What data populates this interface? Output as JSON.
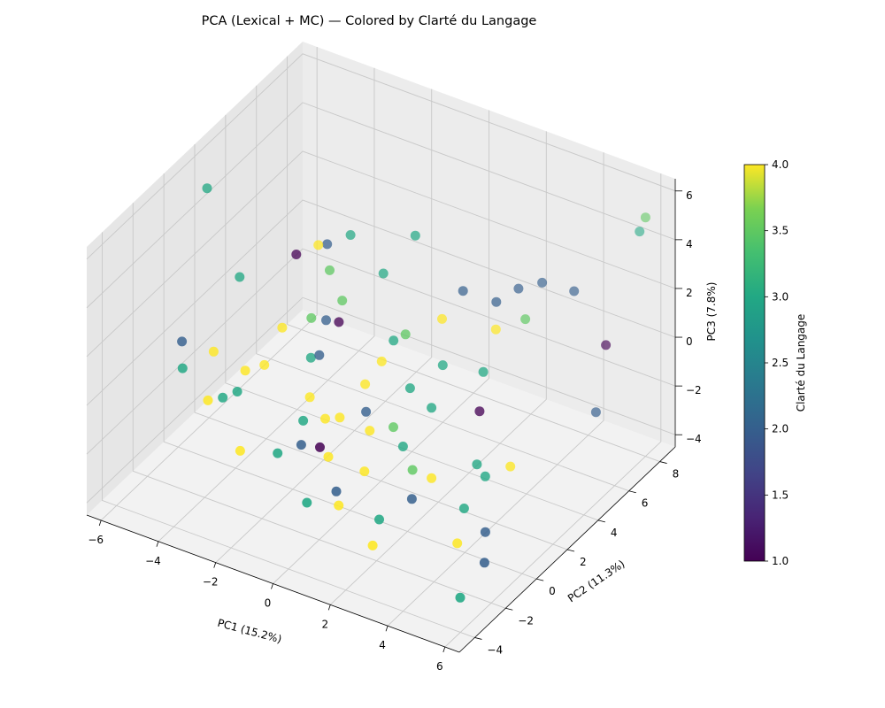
{
  "chart_data": {
    "type": "scatter",
    "subtype": "3d",
    "title": "PCA (Lexical + MC) — Colored by Clarté du Langage",
    "xlabel": "PC1 (15.2%)",
    "ylabel": "PC2 (11.3%)",
    "zlabel": "PC3 (7.8%)",
    "xlim": [
      -6.5,
      6.5
    ],
    "ylim": [
      -5,
      9
    ],
    "zlim": [
      -4.5,
      6.5
    ],
    "x_ticks": [
      "−6",
      "−4",
      "−2",
      "0",
      "2",
      "4",
      "6"
    ],
    "y_ticks": [
      "−4",
      "−2",
      "0",
      "2",
      "4",
      "6",
      "8"
    ],
    "z_ticks": [
      "−4",
      "−2",
      "0",
      "2",
      "4",
      "6"
    ],
    "grid": true,
    "colormap": "viridis",
    "colorbar": {
      "label": "Clarté du Langage",
      "min": 1.0,
      "max": 4.0,
      "ticks": [
        "1.0",
        "1.5",
        "2.0",
        "2.5",
        "3.0",
        "3.5",
        "4.0"
      ]
    },
    "points": [
      {
        "x": -5.8,
        "y": 1.5,
        "z": 5.3,
        "c": 3.0
      },
      {
        "x": -4.5,
        "y": 1.2,
        "z": 2.4,
        "c": 3.0
      },
      {
        "x": -5.6,
        "y": -0.5,
        "z": 0.3,
        "c": 2.0
      },
      {
        "x": -5.2,
        "y": -1.2,
        "z": -0.2,
        "c": 3.0
      },
      {
        "x": -4.6,
        "y": -0.3,
        "z": 0.2,
        "c": 4.0
      },
      {
        "x": -4.1,
        "y": -1.6,
        "z": -0.8,
        "c": 4.0
      },
      {
        "x": -3.8,
        "y": -1.2,
        "z": -0.8,
        "c": 3.0
      },
      {
        "x": -3.4,
        "y": -1.0,
        "z": -0.5,
        "c": 3.0
      },
      {
        "x": -3.5,
        "y": -0.3,
        "z": -0.1,
        "c": 4.0
      },
      {
        "x": -3.1,
        "y": 0.2,
        "z": 0.0,
        "c": 4.0
      },
      {
        "x": -2.8,
        "y": 0.8,
        "z": 1.3,
        "c": 4.0
      },
      {
        "x": -2.9,
        "y": 1.9,
        "z": 3.6,
        "c": 1.0
      },
      {
        "x": -2.4,
        "y": 2.4,
        "z": 3.9,
        "c": 4.0
      },
      {
        "x": -2.2,
        "y": 2.6,
        "z": 3.9,
        "c": 2.0
      },
      {
        "x": -1.9,
        "y": 2.2,
        "z": 3.2,
        "c": 3.5
      },
      {
        "x": -2.0,
        "y": 1.2,
        "z": 1.8,
        "c": 3.5
      },
      {
        "x": -1.7,
        "y": 1.6,
        "z": 1.6,
        "c": 2.0
      },
      {
        "x": -1.6,
        "y": 3.0,
        "z": 4.3,
        "c": 3.0
      },
      {
        "x": -1.3,
        "y": 1.9,
        "z": 2.4,
        "c": 3.5
      },
      {
        "x": -1.2,
        "y": 1.5,
        "z": 1.8,
        "c": 1.0
      },
      {
        "x": -1.4,
        "y": 0.6,
        "z": 0.9,
        "c": 2.0
      },
      {
        "x": -1.8,
        "y": 0.8,
        "z": 0.5,
        "c": 3.0
      },
      {
        "x": -1.3,
        "y": -0.2,
        "z": -0.3,
        "c": 4.0
      },
      {
        "x": -1.1,
        "y": -1.0,
        "z": -0.7,
        "c": 3.0
      },
      {
        "x": -0.9,
        "y": -1.5,
        "z": -1.3,
        "c": 2.0
      },
      {
        "x": -1.4,
        "y": -2.1,
        "z": -1.5,
        "c": 3.0
      },
      {
        "x": -0.6,
        "y": -0.5,
        "z": -0.7,
        "c": 4.0
      },
      {
        "x": -0.3,
        "y": -1.4,
        "z": -1.2,
        "c": 1.0
      },
      {
        "x": 0.1,
        "y": -1.6,
        "z": -1.3,
        "c": 4.0
      },
      {
        "x": -0.2,
        "y": -0.3,
        "z": -0.6,
        "c": 4.0
      },
      {
        "x": 0.2,
        "y": 0.6,
        "z": 0.4,
        "c": 4.0
      },
      {
        "x": 0.4,
        "y": 1.3,
        "z": 1.0,
        "c": 4.0
      },
      {
        "x": 0.5,
        "y": 3.3,
        "z": 5.0,
        "c": 3.0
      },
      {
        "x": 0.6,
        "y": 1.7,
        "z": 1.7,
        "c": 3.0
      },
      {
        "x": 0.8,
        "y": 2.1,
        "z": 1.8,
        "c": 3.5
      },
      {
        "x": 0.5,
        "y": 0.1,
        "z": -0.3,
        "c": 2.0
      },
      {
        "x": 0.9,
        "y": -0.4,
        "z": -0.6,
        "c": 4.0
      },
      {
        "x": 0.7,
        "y": -2.2,
        "z": -2.1,
        "c": 2.0
      },
      {
        "x": 1.0,
        "y": -2.6,
        "z": -2.3,
        "c": 4.0
      },
      {
        "x": 1.2,
        "y": -1.3,
        "z": -1.6,
        "c": 4.0
      },
      {
        "x": 1.4,
        "y": 0.2,
        "z": -0.6,
        "c": 3.5
      },
      {
        "x": 1.5,
        "y": 1.1,
        "z": 0.5,
        "c": 3.0
      },
      {
        "x": 1.7,
        "y": 2.8,
        "z": 2.4,
        "c": 4.0
      },
      {
        "x": 2.0,
        "y": 3.6,
        "z": 3.2,
        "c": 2.0
      },
      {
        "x": 2.1,
        "y": 2.1,
        "z": 1.1,
        "c": 3.0
      },
      {
        "x": 2.3,
        "y": 1.0,
        "z": 0.1,
        "c": 3.0
      },
      {
        "x": 2.5,
        "y": -0.6,
        "z": -1.4,
        "c": 3.5
      },
      {
        "x": 2.2,
        "y": -2.2,
        "z": -2.6,
        "c": 3.0
      },
      {
        "x": 2.4,
        "y": -3.0,
        "z": -3.1,
        "c": 4.0
      },
      {
        "x": 2.8,
        "y": -1.2,
        "z": -2.1,
        "c": 2.0
      },
      {
        "x": 3.0,
        "y": 3.9,
        "z": 3.0,
        "c": 2.0
      },
      {
        "x": 3.2,
        "y": 3.5,
        "z": 2.2,
        "c": 4.0
      },
      {
        "x": 3.4,
        "y": 4.6,
        "z": 3.3,
        "c": 2.0
      },
      {
        "x": 3.3,
        "y": 2.5,
        "z": 1.1,
        "c": 3.0
      },
      {
        "x": 3.6,
        "y": 1.7,
        "z": 0.1,
        "c": 1.0
      },
      {
        "x": 3.8,
        "y": 4.3,
        "z": 2.4,
        "c": 3.5
      },
      {
        "x": 3.9,
        "y": 5.2,
        "z": 3.4,
        "c": 2.0
      },
      {
        "x": 4.1,
        "y": 0.6,
        "z": -1.2,
        "c": 3.0
      },
      {
        "x": 4.3,
        "y": -0.6,
        "z": -2.2,
        "c": 3.0
      },
      {
        "x": 4.5,
        "y": 0.4,
        "z": -1.4,
        "c": 3.0
      },
      {
        "x": 4.6,
        "y": -1.6,
        "z": -2.9,
        "c": 4.0
      },
      {
        "x": 4.8,
        "y": 5.6,
        "z": 3.2,
        "c": 2.0
      },
      {
        "x": 5.0,
        "y": 1.1,
        "z": -1.2,
        "c": 4.0
      },
      {
        "x": 5.2,
        "y": -0.9,
        "z": -2.6,
        "c": 2.0
      },
      {
        "x": 5.4,
        "y": -2.9,
        "z": -4.0,
        "c": 3.0
      },
      {
        "x": 5.6,
        "y": -1.7,
        "z": -3.2,
        "c": 2.0
      },
      {
        "x": 5.8,
        "y": 5.8,
        "z": 1.3,
        "c": 1.0
      },
      {
        "x": 6.0,
        "y": 8.0,
        "z": 5.3,
        "c": 3.5
      },
      {
        "x": 5.9,
        "y": 7.8,
        "z": 4.8,
        "c": 3.0
      },
      {
        "x": 6.1,
        "y": 4.6,
        "z": -0.6,
        "c": 2.0
      },
      {
        "x": -0.4,
        "y": 2.9,
        "z": 3.3,
        "c": 3.0
      },
      {
        "x": 1.9,
        "y": -0.1,
        "z": -1.0,
        "c": 3.0
      },
      {
        "x": -2.6,
        "y": -2.3,
        "z": -1.8,
        "c": 4.0
      },
      {
        "x": 0.0,
        "y": -2.8,
        "z": -2.5,
        "c": 3.0
      },
      {
        "x": 3.0,
        "y": -0.3,
        "z": -1.7,
        "c": 4.0
      }
    ]
  }
}
